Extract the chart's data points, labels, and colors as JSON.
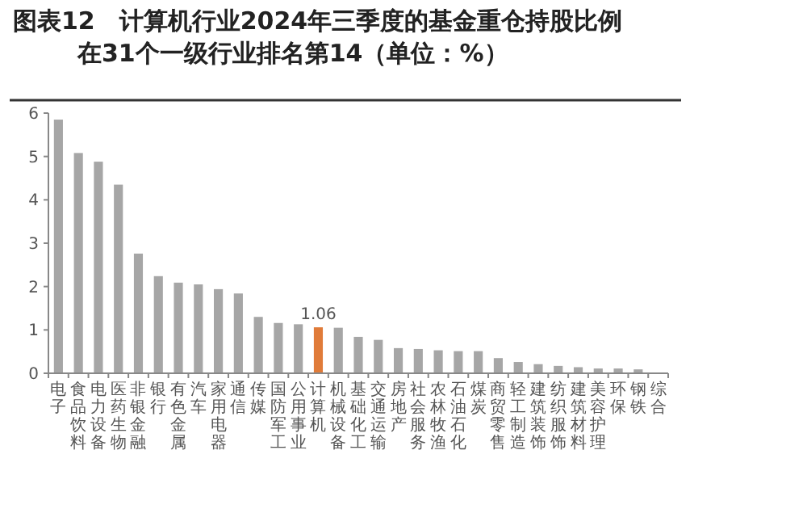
{
  "chart_data": {
    "type": "bar",
    "title": "图表12　计算机行业2024年三季度的基金重仓持股比例",
    "subtitle": "在31个一级行业排名第14（单位：%）",
    "categories": [
      "电子",
      "食品饮料",
      "电力设备",
      "医药生物",
      "非银金融",
      "银行",
      "有色金属",
      "汽车",
      "家用电器",
      "通信",
      "传媒",
      "国防军工",
      "公用事业",
      "计算机",
      "机械设备",
      "基础化工",
      "交通运输",
      "房地产",
      "社会服务",
      "农林牧渔",
      "石油石化",
      "煤炭",
      "商贸零售",
      "轻工制造",
      "建筑装饰",
      "纺织服饰",
      "建筑材料",
      "美容护理",
      "环保",
      "钢铁",
      "综合"
    ],
    "values": [
      5.85,
      5.08,
      4.88,
      4.35,
      2.76,
      2.24,
      2.09,
      2.05,
      1.94,
      1.84,
      1.3,
      1.16,
      1.13,
      1.06,
      1.05,
      0.84,
      0.77,
      0.58,
      0.56,
      0.53,
      0.51,
      0.51,
      0.35,
      0.26,
      0.21,
      0.17,
      0.14,
      0.11,
      0.11,
      0.09,
      0
    ],
    "colors": [
      "#a6a6a6",
      "#a6a6a6",
      "#a6a6a6",
      "#a6a6a6",
      "#a6a6a6",
      "#a6a6a6",
      "#a6a6a6",
      "#a6a6a6",
      "#a6a6a6",
      "#a6a6a6",
      "#a6a6a6",
      "#a6a6a6",
      "#a6a6a6",
      "#e07b39",
      "#a6a6a6",
      "#a6a6a6",
      "#a6a6a6",
      "#a6a6a6",
      "#a6a6a6",
      "#a6a6a6",
      "#a6a6a6",
      "#a6a6a6",
      "#a6a6a6",
      "#a6a6a6",
      "#a6a6a6",
      "#a6a6a6",
      "#a6a6a6",
      "#a6a6a6",
      "#a6a6a6",
      "#a6a6a6",
      "#a6a6a6"
    ],
    "value_labels": [
      null,
      null,
      null,
      null,
      null,
      null,
      null,
      null,
      null,
      null,
      null,
      null,
      null,
      "1.06",
      null,
      null,
      null,
      null,
      null,
      null,
      null,
      null,
      null,
      null,
      null,
      null,
      null,
      null,
      null,
      null,
      null
    ],
    "ylim": [
      0,
      6
    ],
    "yticks": [
      0,
      1,
      2,
      3,
      4,
      5,
      6
    ],
    "grid": false
  }
}
